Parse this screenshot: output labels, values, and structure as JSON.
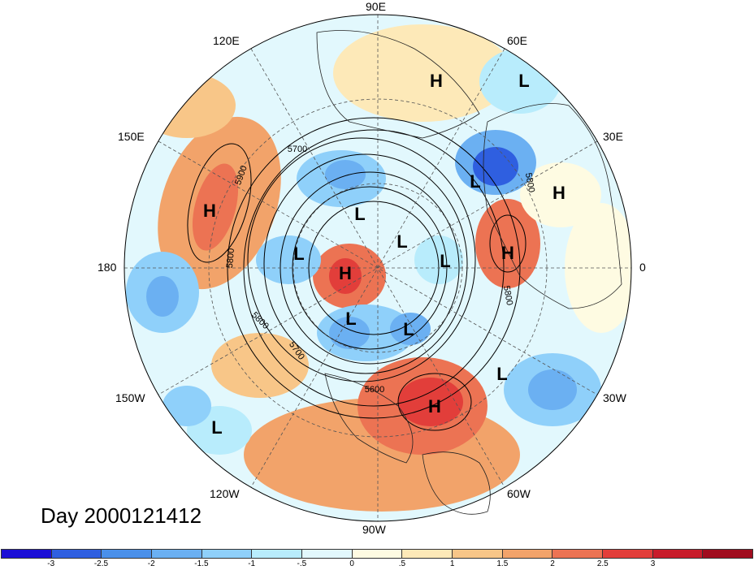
{
  "title": "Day 2000121412",
  "longitude_labels": {
    "lon_90E": "90E",
    "lon_60E": "60E",
    "lon_30E": "30E",
    "lon_0": "0",
    "lon_30W": "30W",
    "lon_60W": "60W",
    "lon_90W": "90W",
    "lon_120W": "120W",
    "lon_150W": "150W",
    "lon_180": "180",
    "lon_150E": "150E",
    "lon_120E": "120E"
  },
  "pressure_centers": [
    {
      "type": "H",
      "label": "H"
    },
    {
      "type": "L",
      "label": "L"
    },
    {
      "type": "H",
      "label": "H"
    },
    {
      "type": "L",
      "label": "L"
    },
    {
      "type": "H",
      "label": "H"
    },
    {
      "type": "L",
      "label": "L"
    },
    {
      "type": "H",
      "label": "H"
    },
    {
      "type": "L",
      "label": "L"
    },
    {
      "type": "L",
      "label": "L"
    },
    {
      "type": "L",
      "label": "L"
    },
    {
      "type": "H",
      "label": "H"
    },
    {
      "type": "L",
      "label": "L"
    },
    {
      "type": "L",
      "label": "L"
    },
    {
      "type": "H",
      "label": "H"
    },
    {
      "type": "L",
      "label": "L"
    },
    {
      "type": "L",
      "label": "L"
    }
  ],
  "contour_labels": [
    "5700",
    "5900",
    "5800",
    "5800",
    "5700",
    "5600",
    "5800",
    "5800"
  ],
  "colorbar": {
    "colors": [
      "#1c0fd6",
      "#2f5fe0",
      "#4a90ea",
      "#6bb0f2",
      "#8fd0fa",
      "#b8ecfc",
      "#e2f8fd",
      "#fefbe2",
      "#fde9b8",
      "#f8c688",
      "#f2a36a",
      "#ec7353",
      "#e23e3a",
      "#c81c2a",
      "#a00c1e"
    ],
    "ticks": [
      "-3",
      "-2.5",
      "-2",
      "-1.5",
      "-1",
      "-.5",
      "0",
      ".5",
      "1",
      "1.5",
      "2",
      "2.5",
      "3"
    ]
  }
}
